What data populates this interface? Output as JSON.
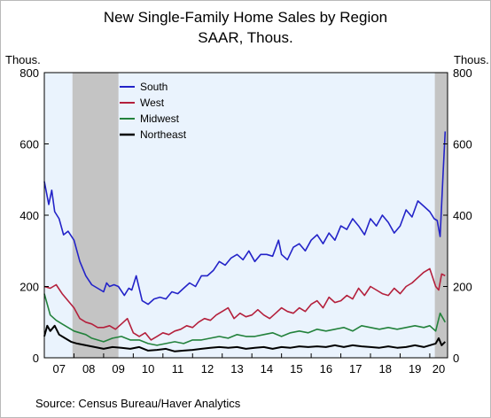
{
  "header": {
    "title": "New Single-Family Home Sales by Region",
    "subtitle": "SAAR, Thous.",
    "left_unit": "Thous.",
    "right_unit": "Thous."
  },
  "footer": {
    "source": "Source:  Census Bureau/Haver Analytics"
  },
  "colors": {
    "plot_bg": "#eaf3fd",
    "recession": "#c4c4c4",
    "south": "#2323c8",
    "west": "#b4203c",
    "midwest": "#23823c",
    "northeast": "#000000"
  },
  "chart_data": {
    "type": "line",
    "title": "New Single-Family Home Sales by Region",
    "subtitle": "SAAR, Thous.",
    "ylabel": "Thous.",
    "ylabel_right": "Thous.",
    "ylim": [
      0,
      800
    ],
    "yticks": [
      0,
      200,
      400,
      600,
      800
    ],
    "xlim": [
      2007.0,
      2020.6
    ],
    "x_tick_labels": [
      "07",
      "08",
      "09",
      "10",
      "11",
      "12",
      "13",
      "14",
      "15",
      "16",
      "17",
      "18",
      "19",
      "20"
    ],
    "legend_position": "top-left",
    "shaded_periods": [
      [
        2007.95,
        2009.5
      ],
      [
        2020.17,
        2020.6
      ]
    ],
    "grid": false,
    "series": [
      {
        "name": "South",
        "color": "#2323c8",
        "x": [
          2007.0,
          2007.15,
          2007.25,
          2007.35,
          2007.5,
          2007.65,
          2007.8,
          2008.0,
          2008.2,
          2008.4,
          2008.6,
          2008.8,
          2009.0,
          2009.1,
          2009.2,
          2009.35,
          2009.5,
          2009.7,
          2009.85,
          2009.95,
          2010.1,
          2010.3,
          2010.5,
          2010.7,
          2010.9,
          2011.1,
          2011.3,
          2011.5,
          2011.7,
          2011.9,
          2012.1,
          2012.3,
          2012.5,
          2012.7,
          2012.9,
          2013.1,
          2013.3,
          2013.5,
          2013.7,
          2013.9,
          2014.1,
          2014.3,
          2014.5,
          2014.7,
          2014.9,
          2015.0,
          2015.2,
          2015.4,
          2015.6,
          2015.8,
          2016.0,
          2016.2,
          2016.4,
          2016.6,
          2016.8,
          2017.0,
          2017.2,
          2017.4,
          2017.6,
          2017.8,
          2018.0,
          2018.2,
          2018.4,
          2018.6,
          2018.8,
          2019.0,
          2019.2,
          2019.4,
          2019.6,
          2019.8,
          2020.0,
          2020.15,
          2020.25,
          2020.35,
          2020.45,
          2020.52
        ],
        "y": [
          495,
          430,
          470,
          410,
          390,
          345,
          355,
          330,
          270,
          230,
          205,
          195,
          185,
          210,
          200,
          205,
          200,
          175,
          195,
          190,
          230,
          160,
          150,
          165,
          170,
          165,
          185,
          180,
          195,
          210,
          200,
          230,
          230,
          245,
          270,
          260,
          280,
          290,
          275,
          300,
          270,
          290,
          290,
          285,
          330,
          290,
          275,
          310,
          320,
          300,
          330,
          345,
          320,
          350,
          330,
          370,
          360,
          390,
          370,
          345,
          390,
          370,
          400,
          380,
          350,
          370,
          415,
          395,
          440,
          425,
          410,
          390,
          385,
          340,
          520,
          635
        ]
      },
      {
        "name": "West",
        "color": "#b4203c",
        "x": [
          2007.0,
          2007.2,
          2007.4,
          2007.6,
          2007.8,
          2008.0,
          2008.2,
          2008.4,
          2008.6,
          2008.8,
          2009.0,
          2009.2,
          2009.4,
          2009.6,
          2009.8,
          2010.0,
          2010.2,
          2010.4,
          2010.6,
          2010.8,
          2011.0,
          2011.2,
          2011.4,
          2011.6,
          2011.8,
          2012.0,
          2012.2,
          2012.4,
          2012.6,
          2012.8,
          2013.0,
          2013.2,
          2013.4,
          2013.6,
          2013.8,
          2014.0,
          2014.2,
          2014.4,
          2014.6,
          2014.8,
          2015.0,
          2015.2,
          2015.4,
          2015.6,
          2015.8,
          2016.0,
          2016.2,
          2016.4,
          2016.6,
          2016.8,
          2017.0,
          2017.2,
          2017.4,
          2017.6,
          2017.8,
          2018.0,
          2018.2,
          2018.4,
          2018.6,
          2018.8,
          2019.0,
          2019.2,
          2019.4,
          2019.6,
          2019.8,
          2020.0,
          2020.2,
          2020.3,
          2020.4,
          2020.52
        ],
        "y": [
          200,
          195,
          205,
          180,
          160,
          140,
          110,
          100,
          95,
          85,
          85,
          90,
          80,
          95,
          110,
          70,
          60,
          70,
          50,
          60,
          70,
          65,
          75,
          80,
          90,
          85,
          100,
          110,
          105,
          120,
          130,
          140,
          110,
          125,
          115,
          120,
          135,
          120,
          110,
          125,
          140,
          130,
          125,
          140,
          130,
          150,
          160,
          140,
          170,
          155,
          160,
          175,
          165,
          195,
          175,
          200,
          190,
          180,
          175,
          195,
          180,
          200,
          210,
          225,
          240,
          250,
          200,
          190,
          235,
          230
        ]
      },
      {
        "name": "Midwest",
        "color": "#23823c",
        "x": [
          2007.0,
          2007.2,
          2007.4,
          2007.6,
          2007.8,
          2008.0,
          2008.2,
          2008.4,
          2008.6,
          2008.8,
          2009.0,
          2009.3,
          2009.6,
          2009.9,
          2010.2,
          2010.5,
          2010.8,
          2011.1,
          2011.4,
          2011.7,
          2012.0,
          2012.3,
          2012.6,
          2012.9,
          2013.2,
          2013.5,
          2013.8,
          2014.1,
          2014.4,
          2014.7,
          2015.0,
          2015.3,
          2015.6,
          2015.9,
          2016.2,
          2016.5,
          2016.8,
          2017.1,
          2017.4,
          2017.7,
          2018.0,
          2018.3,
          2018.6,
          2018.9,
          2019.2,
          2019.5,
          2019.8,
          2020.0,
          2020.2,
          2020.35,
          2020.45,
          2020.52
        ],
        "y": [
          180,
          120,
          105,
          95,
          85,
          75,
          70,
          65,
          55,
          50,
          45,
          55,
          60,
          50,
          50,
          40,
          35,
          40,
          45,
          40,
          50,
          50,
          55,
          60,
          55,
          65,
          60,
          60,
          65,
          70,
          60,
          70,
          75,
          70,
          80,
          75,
          80,
          85,
          75,
          90,
          85,
          80,
          85,
          80,
          85,
          90,
          85,
          90,
          75,
          125,
          110,
          100
        ]
      },
      {
        "name": "Northeast",
        "color": "#000000",
        "x": [
          2007.0,
          2007.1,
          2007.2,
          2007.35,
          2007.5,
          2007.7,
          2007.9,
          2008.1,
          2008.4,
          2008.7,
          2009.0,
          2009.3,
          2009.6,
          2009.9,
          2010.2,
          2010.5,
          2010.8,
          2011.1,
          2011.4,
          2011.7,
          2012.0,
          2012.3,
          2012.6,
          2012.9,
          2013.2,
          2013.5,
          2013.8,
          2014.1,
          2014.4,
          2014.7,
          2015.0,
          2015.3,
          2015.6,
          2015.9,
          2016.2,
          2016.5,
          2016.8,
          2017.1,
          2017.4,
          2017.7,
          2018.0,
          2018.3,
          2018.6,
          2018.9,
          2019.2,
          2019.5,
          2019.8,
          2020.0,
          2020.2,
          2020.3,
          2020.4,
          2020.52
        ],
        "y": [
          60,
          90,
          75,
          90,
          65,
          55,
          45,
          40,
          35,
          30,
          25,
          30,
          28,
          25,
          30,
          20,
          22,
          25,
          18,
          20,
          22,
          25,
          28,
          30,
          28,
          30,
          25,
          28,
          30,
          25,
          30,
          28,
          32,
          30,
          32,
          30,
          35,
          30,
          35,
          32,
          30,
          28,
          32,
          28,
          30,
          35,
          30,
          35,
          40,
          55,
          35,
          45
        ]
      }
    ]
  }
}
